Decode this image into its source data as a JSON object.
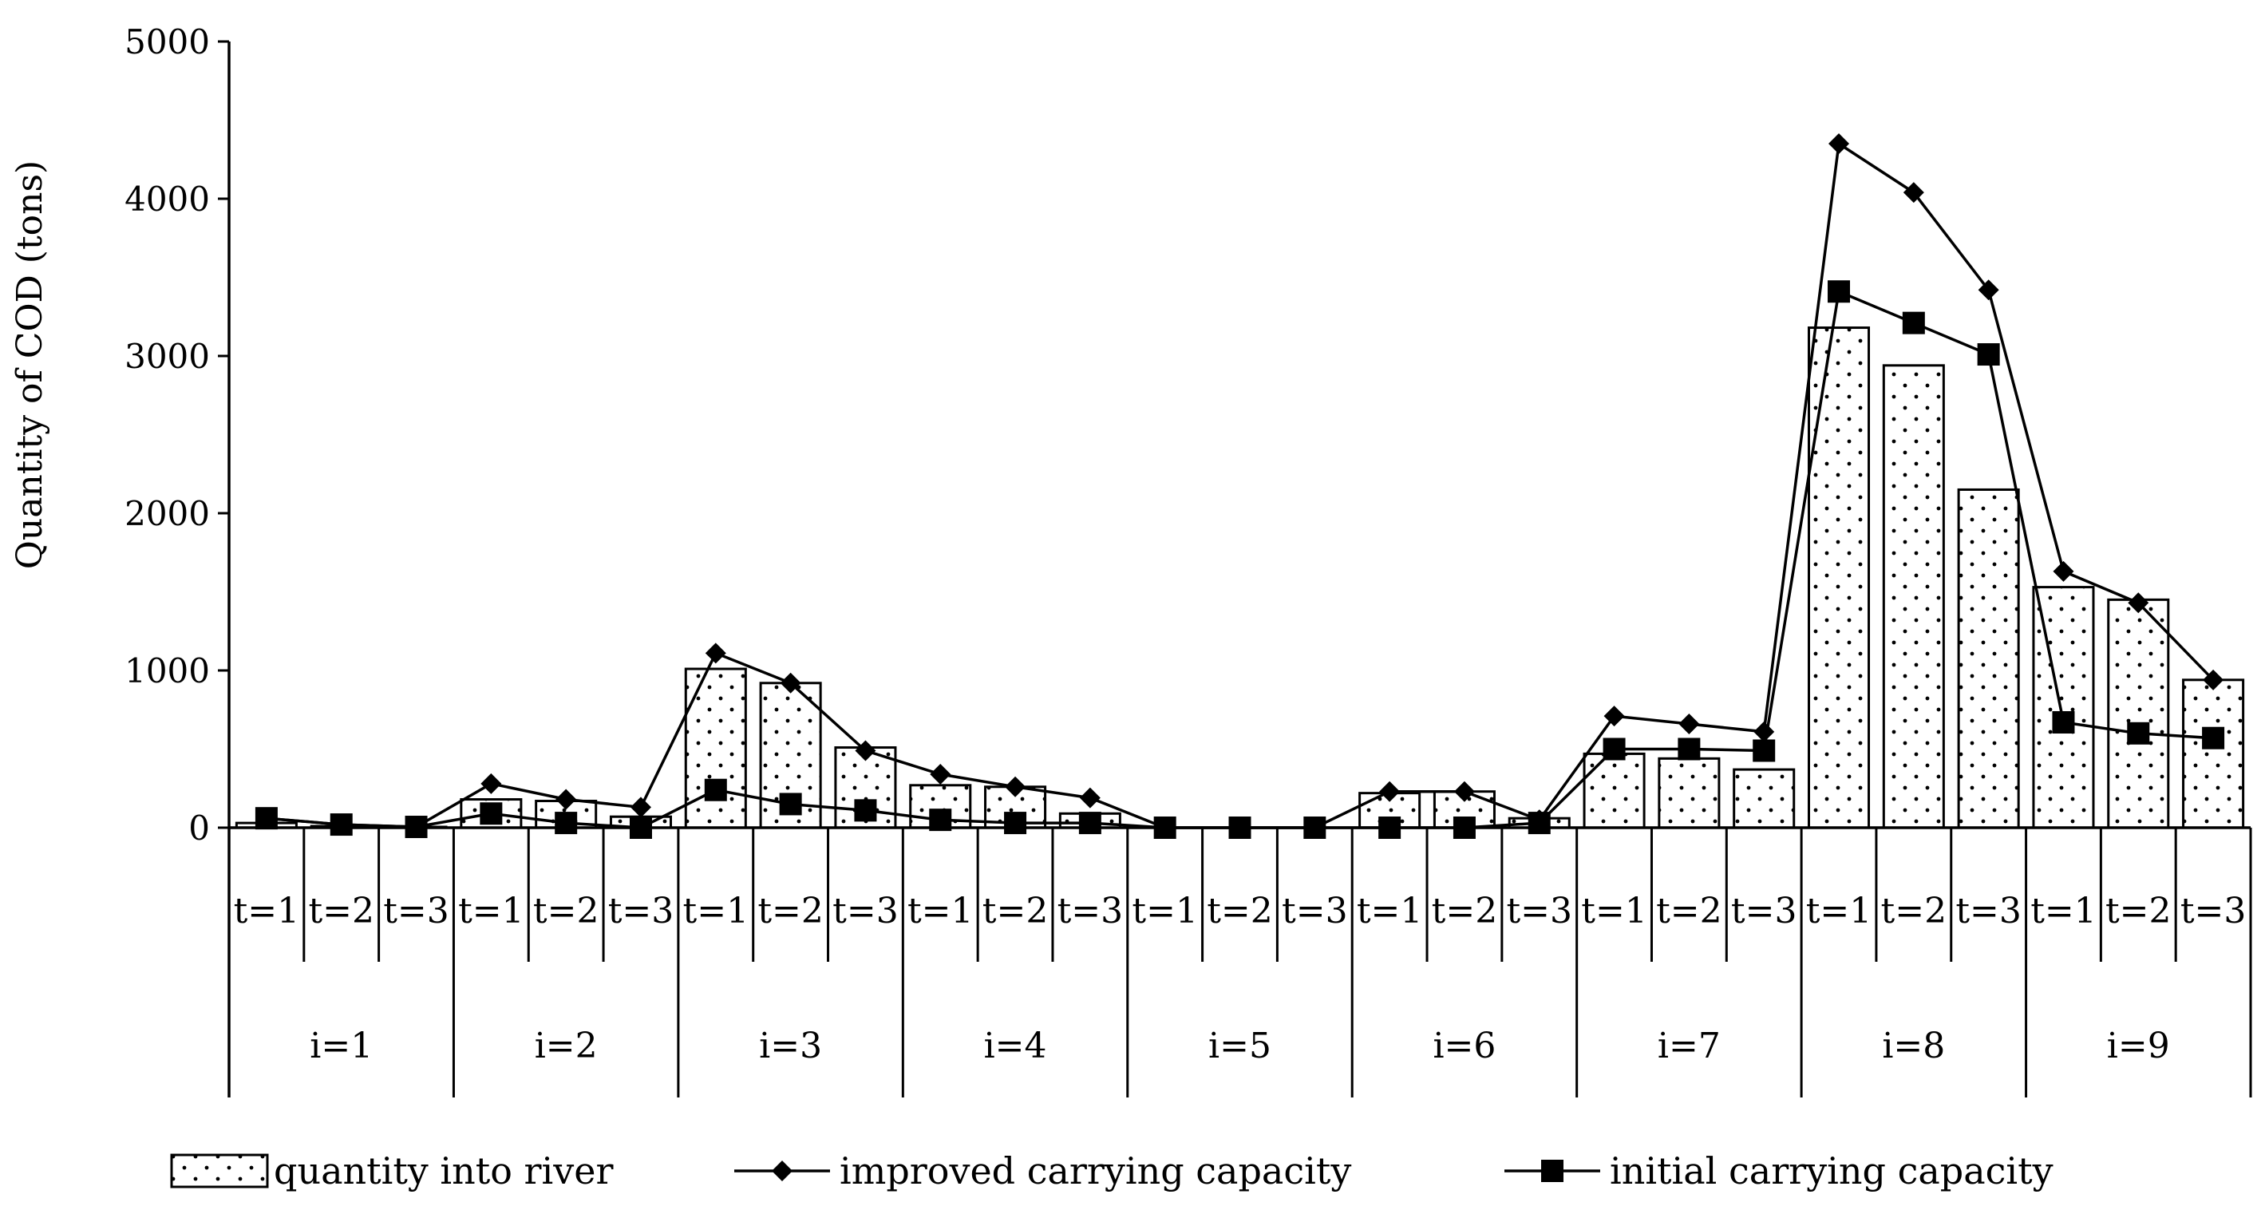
{
  "chart_data": {
    "type": "bar",
    "ylabel": "Quantity of COD (tons)",
    "ylim": [
      0,
      5000
    ],
    "yticks": [
      "0",
      "1000",
      "2000",
      "3000",
      "4000",
      "5000"
    ],
    "y_tick_values": [
      0,
      1000,
      2000,
      3000,
      4000,
      5000
    ],
    "groups": [
      "i=1",
      "i=2",
      "i=3",
      "i=4",
      "i=5",
      "i=6",
      "i=7",
      "i=8",
      "i=9"
    ],
    "subcategories": [
      "t=1",
      "t=2",
      "t=3"
    ],
    "series": [
      {
        "name": "quantity into river",
        "type": "bar",
        "values": [
          30,
          10,
          5,
          180,
          170,
          70,
          1010,
          920,
          510,
          270,
          260,
          90,
          0,
          0,
          0,
          220,
          230,
          60,
          470,
          440,
          370,
          3180,
          2940,
          2150,
          1530,
          1450,
          940
        ]
      },
      {
        "name": "improved carrying capacity",
        "type": "line",
        "marker": "diamond",
        "values": [
          60,
          20,
          5,
          280,
          180,
          130,
          1110,
          920,
          490,
          340,
          260,
          190,
          0,
          0,
          0,
          230,
          230,
          50,
          710,
          660,
          610,
          4350,
          4040,
          3420,
          1630,
          1430,
          940
        ]
      },
      {
        "name": "initial carrying capacity",
        "type": "line",
        "marker": "square",
        "values": [
          60,
          20,
          5,
          90,
          30,
          0,
          240,
          150,
          110,
          50,
          30,
          30,
          0,
          0,
          0,
          0,
          0,
          30,
          500,
          500,
          490,
          3410,
          3210,
          3010,
          670,
          600,
          570
        ]
      }
    ],
    "legend_position": "bottom",
    "grid": false
  }
}
